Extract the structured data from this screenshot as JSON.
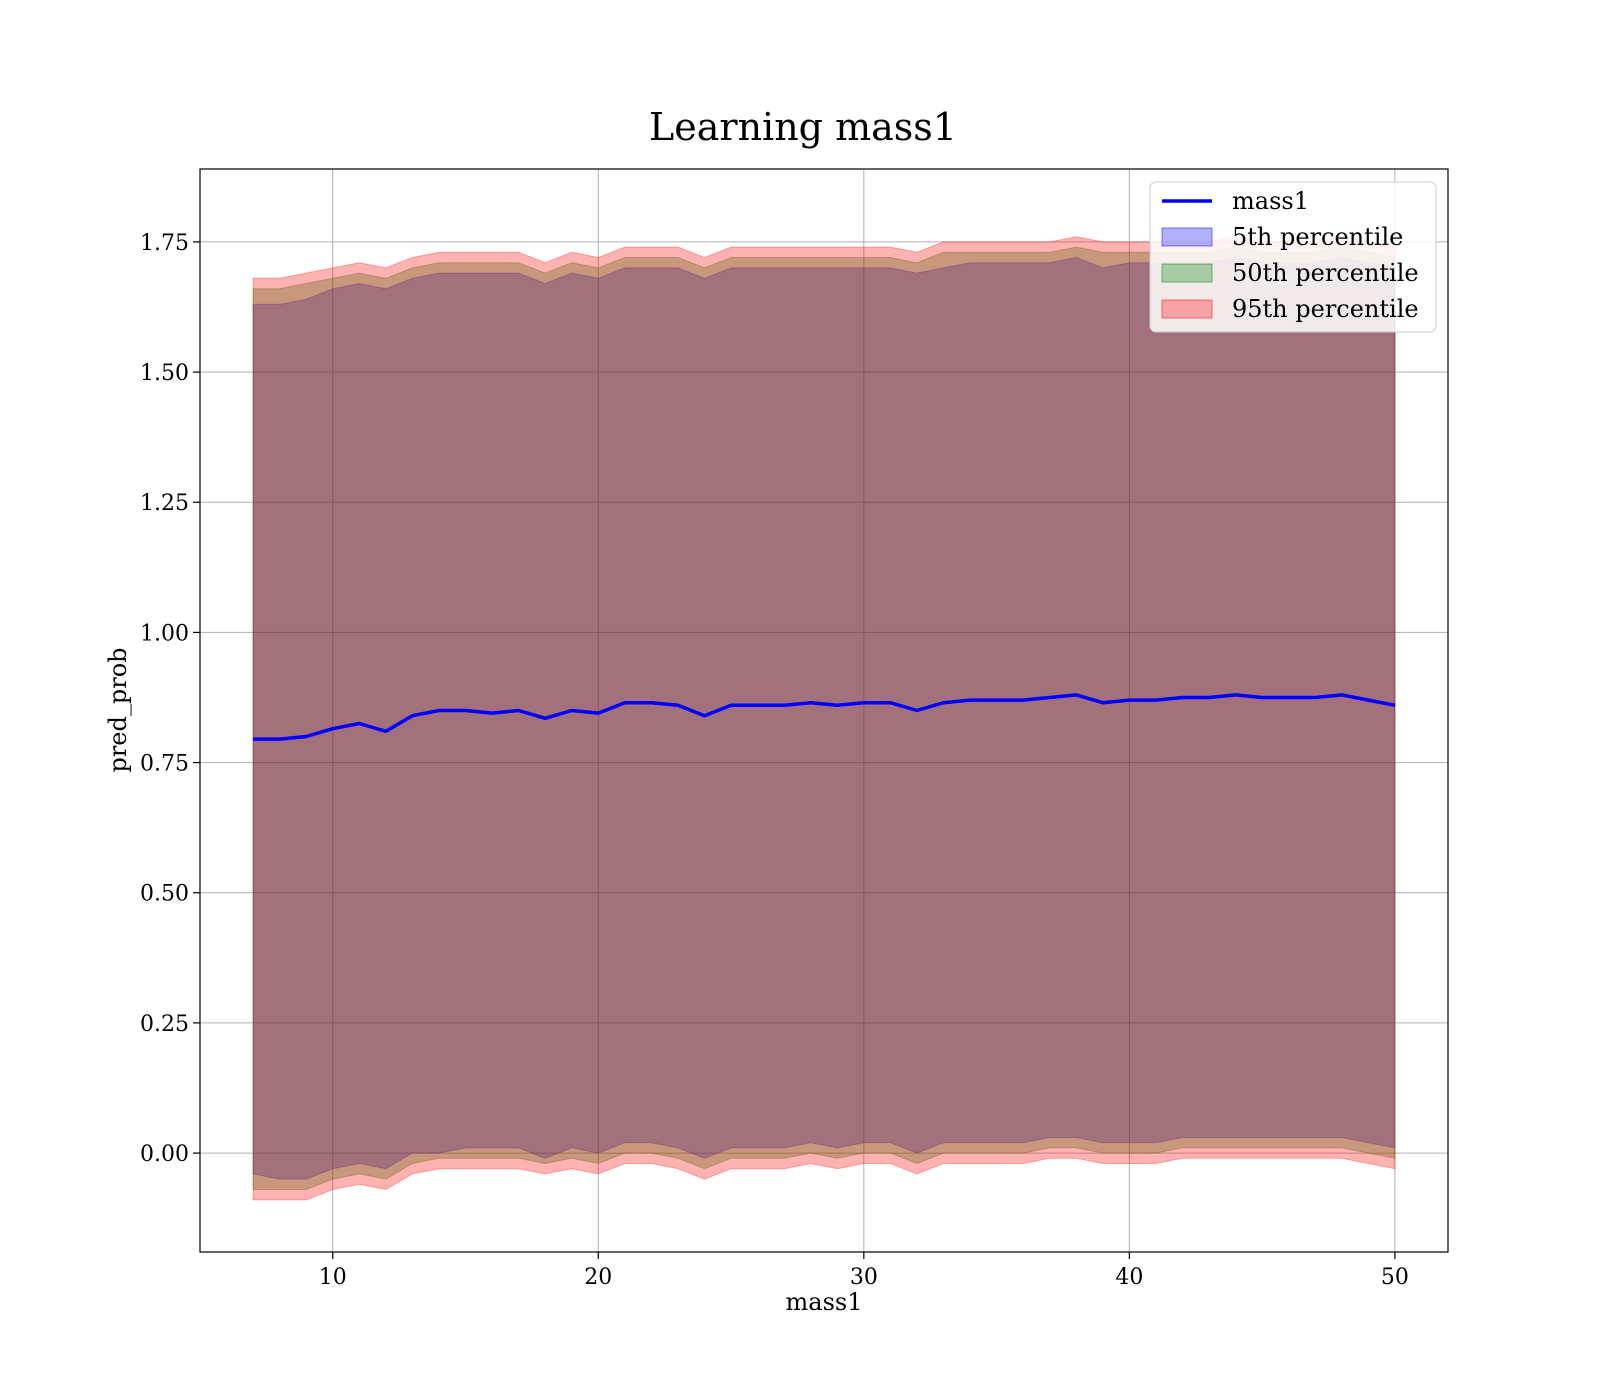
{
  "chart_data": {
    "type": "line",
    "title": "Learning mass1",
    "xlabel": "mass1",
    "ylabel": "pred_prob",
    "xlim": [
      5,
      52
    ],
    "ylim": [
      -0.19,
      1.89
    ],
    "x_ticks": [
      10,
      20,
      30,
      40,
      50
    ],
    "x_tick_labels": [
      "10",
      "20",
      "30",
      "40",
      "50"
    ],
    "y_ticks": [
      0.0,
      0.25,
      0.5,
      0.75,
      1.0,
      1.25,
      1.5,
      1.75
    ],
    "y_tick_labels": [
      "0.00",
      "0.25",
      "0.50",
      "0.75",
      "1.00",
      "1.25",
      "1.50",
      "1.75"
    ],
    "grid": true,
    "legend_position": "top-right",
    "x": [
      7,
      8,
      9,
      10,
      11,
      12,
      13,
      14,
      15,
      16,
      17,
      18,
      19,
      20,
      21,
      22,
      23,
      24,
      25,
      26,
      27,
      28,
      29,
      30,
      31,
      32,
      33,
      34,
      35,
      36,
      37,
      38,
      39,
      40,
      41,
      42,
      43,
      44,
      45,
      46,
      47,
      48,
      49,
      50
    ],
    "series": [
      {
        "name": "mass1",
        "kind": "line",
        "color": "#0000ff",
        "values": [
          0.795,
          0.795,
          0.8,
          0.815,
          0.825,
          0.81,
          0.84,
          0.85,
          0.85,
          0.845,
          0.85,
          0.835,
          0.85,
          0.845,
          0.865,
          0.865,
          0.86,
          0.84,
          0.86,
          0.86,
          0.86,
          0.865,
          0.86,
          0.865,
          0.865,
          0.85,
          0.865,
          0.87,
          0.87,
          0.87,
          0.875,
          0.88,
          0.865,
          0.87,
          0.87,
          0.875,
          0.875,
          0.88,
          0.875,
          0.875,
          0.875,
          0.88,
          0.87,
          0.86
        ]
      },
      {
        "name": "5th percentile",
        "kind": "band",
        "color": "#0000ff",
        "opacity": 0.3,
        "lower": [
          -0.04,
          -0.05,
          -0.05,
          -0.03,
          -0.02,
          -0.03,
          0.0,
          0.0,
          0.01,
          0.01,
          0.01,
          -0.01,
          0.01,
          0.0,
          0.02,
          0.02,
          0.01,
          -0.01,
          0.01,
          0.01,
          0.01,
          0.02,
          0.01,
          0.02,
          0.02,
          0.0,
          0.02,
          0.02,
          0.02,
          0.02,
          0.03,
          0.03,
          0.02,
          0.02,
          0.02,
          0.03,
          0.03,
          0.03,
          0.03,
          0.03,
          0.03,
          0.03,
          0.02,
          0.01
        ],
        "upper": [
          1.63,
          1.63,
          1.64,
          1.66,
          1.67,
          1.66,
          1.68,
          1.69,
          1.69,
          1.69,
          1.69,
          1.67,
          1.69,
          1.68,
          1.7,
          1.7,
          1.7,
          1.68,
          1.7,
          1.7,
          1.7,
          1.7,
          1.7,
          1.7,
          1.7,
          1.69,
          1.7,
          1.71,
          1.71,
          1.71,
          1.71,
          1.72,
          1.7,
          1.71,
          1.71,
          1.71,
          1.71,
          1.72,
          1.71,
          1.71,
          1.71,
          1.72,
          1.71,
          1.7
        ]
      },
      {
        "name": "50th percentile",
        "kind": "band",
        "color": "#008000",
        "opacity": 0.3,
        "lower": [
          -0.07,
          -0.07,
          -0.07,
          -0.05,
          -0.04,
          -0.05,
          -0.02,
          -0.01,
          -0.01,
          -0.01,
          -0.01,
          -0.02,
          -0.01,
          -0.02,
          0.0,
          0.0,
          -0.01,
          -0.03,
          -0.01,
          -0.01,
          -0.01,
          0.0,
          -0.01,
          0.0,
          0.0,
          -0.02,
          0.0,
          0.0,
          0.0,
          0.0,
          0.01,
          0.01,
          0.0,
          0.0,
          0.0,
          0.01,
          0.01,
          0.01,
          0.01,
          0.01,
          0.01,
          0.01,
          0.0,
          -0.01
        ],
        "upper": [
          1.66,
          1.66,
          1.67,
          1.68,
          1.69,
          1.68,
          1.7,
          1.71,
          1.71,
          1.71,
          1.71,
          1.69,
          1.71,
          1.7,
          1.72,
          1.72,
          1.72,
          1.7,
          1.72,
          1.72,
          1.72,
          1.72,
          1.72,
          1.72,
          1.72,
          1.71,
          1.73,
          1.73,
          1.73,
          1.73,
          1.73,
          1.74,
          1.73,
          1.73,
          1.73,
          1.73,
          1.73,
          1.74,
          1.73,
          1.73,
          1.73,
          1.74,
          1.73,
          1.72
        ]
      },
      {
        "name": "95th percentile",
        "kind": "band",
        "color": "#ff0000",
        "opacity": 0.3,
        "lower": [
          -0.09,
          -0.09,
          -0.09,
          -0.07,
          -0.06,
          -0.07,
          -0.04,
          -0.03,
          -0.03,
          -0.03,
          -0.03,
          -0.04,
          -0.03,
          -0.04,
          -0.02,
          -0.02,
          -0.03,
          -0.05,
          -0.03,
          -0.03,
          -0.03,
          -0.02,
          -0.03,
          -0.02,
          -0.02,
          -0.04,
          -0.02,
          -0.02,
          -0.02,
          -0.02,
          -0.01,
          -0.01,
          -0.02,
          -0.02,
          -0.02,
          -0.01,
          -0.01,
          -0.01,
          -0.01,
          -0.01,
          -0.01,
          -0.01,
          -0.02,
          -0.03
        ],
        "upper": [
          1.68,
          1.68,
          1.69,
          1.7,
          1.71,
          1.7,
          1.72,
          1.73,
          1.73,
          1.73,
          1.73,
          1.71,
          1.73,
          1.72,
          1.74,
          1.74,
          1.74,
          1.72,
          1.74,
          1.74,
          1.74,
          1.74,
          1.74,
          1.74,
          1.74,
          1.73,
          1.75,
          1.75,
          1.75,
          1.75,
          1.75,
          1.76,
          1.75,
          1.75,
          1.75,
          1.75,
          1.75,
          1.76,
          1.75,
          1.75,
          1.75,
          1.76,
          1.75,
          1.74
        ]
      }
    ]
  }
}
